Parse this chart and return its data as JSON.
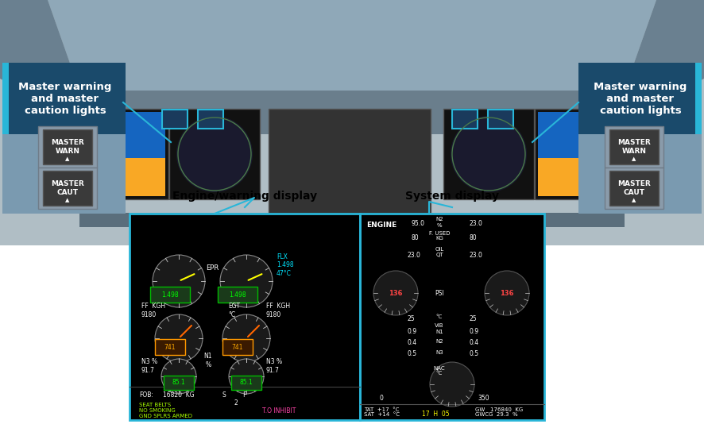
{
  "bg_color": "#ffffff",
  "cockpit_bg": "#b0bec5",
  "panel_header_bg": "#1a4a6b",
  "panel_header_text": "#ffffff",
  "panel_body_bg": "#7a9ab0",
  "button_outer_bg": "#9aabb8",
  "button_inner_bg": "#4a4a4a",
  "button_text": "#ffffff",
  "display_bg": "#000000",
  "display_border": "#29b6d8",
  "label_line_color": "#29b6d8",
  "engine_display_label": "Engine/warning display",
  "system_display_label": "System display",
  "left_panel_label": "Master warning\nand master\ncaution lights",
  "right_panel_label": "Master warning\nand master\ncaution lights",
  "cockpit_roof_color": "#8fa8b8",
  "cockpit_dark_roof": "#6a8090"
}
